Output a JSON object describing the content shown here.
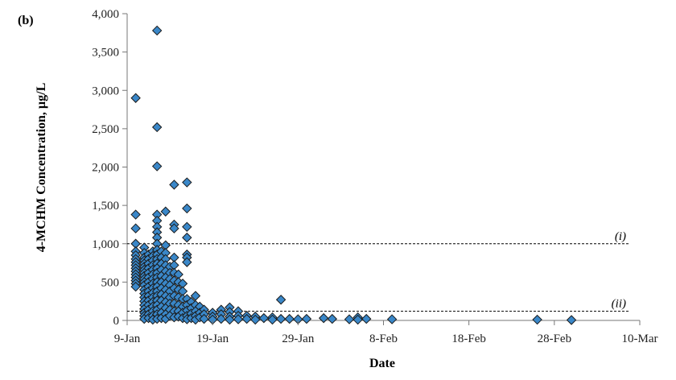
{
  "chart_data": {
    "type": "scatter",
    "panel_label": "(b)",
    "xlabel": "Date",
    "ylabel": "4-MCHM Concentration, µg/L",
    "x_ticks": [
      {
        "label": "9-Jan",
        "day": 9
      },
      {
        "label": "19-Jan",
        "day": 19
      },
      {
        "label": "29-Jan",
        "day": 29
      },
      {
        "label": "8-Feb",
        "day": 39
      },
      {
        "label": "18-Feb",
        "day": 49
      },
      {
        "label": "28-Feb",
        "day": 59
      },
      {
        "label": "10-Mar",
        "day": 69
      }
    ],
    "xlim": [
      9,
      69
    ],
    "ylim": [
      0,
      4000
    ],
    "y_ticks": [
      {
        "label": "0",
        "value": 0
      },
      {
        "label": "500",
        "value": 500
      },
      {
        "label": "1,000",
        "value": 1000
      },
      {
        "label": "1,500",
        "value": 1500
      },
      {
        "label": "2,000",
        "value": 2000
      },
      {
        "label": "2,500",
        "value": 2500
      },
      {
        "label": "3,000",
        "value": 3000
      },
      {
        "label": "3,500",
        "value": 3500
      },
      {
        "label": "4,000",
        "value": 4000
      }
    ],
    "reference_lines": [
      {
        "label": "(i)",
        "value": 1000
      },
      {
        "label": "(ii)",
        "value": 120
      }
    ],
    "marker_color": "#3a87c8",
    "points": [
      [
        10,
        2900
      ],
      [
        10,
        1380
      ],
      [
        10,
        1200
      ],
      [
        10,
        1000
      ],
      [
        10,
        900
      ],
      [
        10,
        850
      ],
      [
        10,
        800
      ],
      [
        10,
        760
      ],
      [
        10,
        720
      ],
      [
        10,
        680
      ],
      [
        10,
        640
      ],
      [
        10,
        600
      ],
      [
        10,
        560
      ],
      [
        10,
        520
      ],
      [
        10,
        480
      ],
      [
        10,
        440
      ],
      [
        11,
        950
      ],
      [
        11,
        880
      ],
      [
        11,
        820
      ],
      [
        11,
        780
      ],
      [
        11,
        740
      ],
      [
        11,
        700
      ],
      [
        11,
        660
      ],
      [
        11,
        620
      ],
      [
        11,
        580
      ],
      [
        11,
        540
      ],
      [
        11,
        500
      ],
      [
        11,
        460
      ],
      [
        11,
        400
      ],
      [
        11,
        350
      ],
      [
        11,
        300
      ],
      [
        11,
        250
      ],
      [
        11,
        200
      ],
      [
        11,
        150
      ],
      [
        11,
        100
      ],
      [
        11,
        60
      ],
      [
        11,
        20
      ],
      [
        11.5,
        860
      ],
      [
        11.5,
        800
      ],
      [
        11.5,
        740
      ],
      [
        11.5,
        680
      ],
      [
        11.5,
        620
      ],
      [
        11.5,
        560
      ],
      [
        11.5,
        500
      ],
      [
        11.5,
        440
      ],
      [
        11.5,
        380
      ],
      [
        11.5,
        320
      ],
      [
        11.5,
        260
      ],
      [
        11.5,
        200
      ],
      [
        11.5,
        140
      ],
      [
        11.5,
        80
      ],
      [
        11.5,
        30
      ],
      [
        12,
        900
      ],
      [
        12,
        840
      ],
      [
        12,
        780
      ],
      [
        12,
        720
      ],
      [
        12,
        660
      ],
      [
        12,
        600
      ],
      [
        12,
        540
      ],
      [
        12,
        480
      ],
      [
        12,
        420
      ],
      [
        12,
        360
      ],
      [
        12,
        300
      ],
      [
        12,
        240
      ],
      [
        12,
        180
      ],
      [
        12,
        120
      ],
      [
        12,
        60
      ],
      [
        12,
        10
      ],
      [
        12.5,
        3780
      ],
      [
        12.5,
        2520
      ],
      [
        12.5,
        2010
      ],
      [
        12.5,
        1380
      ],
      [
        12.5,
        1300
      ],
      [
        12.5,
        1220
      ],
      [
        12.5,
        1150
      ],
      [
        12.5,
        1080
      ],
      [
        12.5,
        1000
      ],
      [
        12.5,
        920
      ],
      [
        12.5,
        860
      ],
      [
        12.5,
        800
      ],
      [
        12.5,
        740
      ],
      [
        12.5,
        680
      ],
      [
        12.5,
        620
      ],
      [
        12.5,
        560
      ],
      [
        12.5,
        500
      ],
      [
        12.5,
        440
      ],
      [
        12.5,
        380
      ],
      [
        12.5,
        320
      ],
      [
        12.5,
        260
      ],
      [
        12.5,
        200
      ],
      [
        12.5,
        140
      ],
      [
        12.5,
        80
      ],
      [
        12.5,
        20
      ],
      [
        13,
        900
      ],
      [
        13,
        820
      ],
      [
        13,
        740
      ],
      [
        13,
        660
      ],
      [
        13,
        580
      ],
      [
        13,
        500
      ],
      [
        13,
        420
      ],
      [
        13,
        340
      ],
      [
        13,
        260
      ],
      [
        13,
        180
      ],
      [
        13,
        100
      ],
      [
        13,
        30
      ],
      [
        13.5,
        1420
      ],
      [
        13.5,
        980
      ],
      [
        13.5,
        880
      ],
      [
        13.5,
        800
      ],
      [
        13.5,
        720
      ],
      [
        13.5,
        640
      ],
      [
        13.5,
        560
      ],
      [
        13.5,
        480
      ],
      [
        13.5,
        400
      ],
      [
        13.5,
        320
      ],
      [
        13.5,
        240
      ],
      [
        13.5,
        160
      ],
      [
        13.5,
        80
      ],
      [
        13.5,
        20
      ],
      [
        14,
        700
      ],
      [
        14,
        620
      ],
      [
        14,
        540
      ],
      [
        14,
        460
      ],
      [
        14,
        380
      ],
      [
        14,
        300
      ],
      [
        14,
        220
      ],
      [
        14,
        140
      ],
      [
        14,
        60
      ],
      [
        14.5,
        1770
      ],
      [
        14.5,
        1250
      ],
      [
        14.5,
        1200
      ],
      [
        14.5,
        820
      ],
      [
        14.5,
        720
      ],
      [
        14.5,
        620
      ],
      [
        14.5,
        520
      ],
      [
        14.5,
        420
      ],
      [
        14.5,
        320
      ],
      [
        14.5,
        220
      ],
      [
        14.5,
        120
      ],
      [
        14.5,
        40
      ],
      [
        15,
        600
      ],
      [
        15,
        500
      ],
      [
        15,
        400
      ],
      [
        15,
        300
      ],
      [
        15,
        200
      ],
      [
        15,
        120
      ],
      [
        15,
        50
      ],
      [
        15.5,
        480
      ],
      [
        15.5,
        380
      ],
      [
        15.5,
        280
      ],
      [
        15.5,
        180
      ],
      [
        15.5,
        100
      ],
      [
        15.5,
        30
      ],
      [
        16,
        1800
      ],
      [
        16,
        1460
      ],
      [
        16,
        1220
      ],
      [
        16,
        1080
      ],
      [
        16,
        860
      ],
      [
        16,
        820
      ],
      [
        16,
        760
      ],
      [
        16,
        280
      ],
      [
        16,
        200
      ],
      [
        16,
        130
      ],
      [
        16,
        60
      ],
      [
        16,
        15
      ],
      [
        16.5,
        240
      ],
      [
        16.5,
        160
      ],
      [
        16.5,
        90
      ],
      [
        16.5,
        30
      ],
      [
        17,
        320
      ],
      [
        17,
        200
      ],
      [
        17,
        120
      ],
      [
        17,
        60
      ],
      [
        17,
        10
      ],
      [
        17.5,
        180
      ],
      [
        17.5,
        100
      ],
      [
        17.5,
        40
      ],
      [
        18,
        140
      ],
      [
        18,
        80
      ],
      [
        18,
        20
      ],
      [
        19,
        100
      ],
      [
        19,
        50
      ],
      [
        19,
        10
      ],
      [
        20,
        140
      ],
      [
        20,
        80
      ],
      [
        20,
        20
      ],
      [
        21,
        170
      ],
      [
        21,
        110
      ],
      [
        21,
        50
      ],
      [
        21,
        10
      ],
      [
        22,
        120
      ],
      [
        22,
        60
      ],
      [
        22,
        15
      ],
      [
        23,
        60
      ],
      [
        23,
        20
      ],
      [
        24,
        50
      ],
      [
        24,
        10
      ],
      [
        25,
        30
      ],
      [
        26,
        40
      ],
      [
        26,
        10
      ],
      [
        27,
        270
      ],
      [
        27,
        20
      ],
      [
        28,
        20
      ],
      [
        29,
        15
      ],
      [
        30,
        20
      ],
      [
        32,
        30
      ],
      [
        33,
        20
      ],
      [
        35,
        15
      ],
      [
        36,
        40
      ],
      [
        36,
        10
      ],
      [
        37,
        20
      ],
      [
        40,
        15
      ],
      [
        57,
        10
      ],
      [
        61,
        5
      ]
    ]
  }
}
